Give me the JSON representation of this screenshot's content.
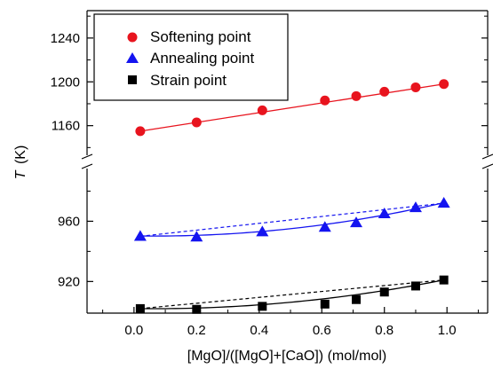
{
  "chart_data": {
    "type": "scatter",
    "xlabel": "[MgO]/([MgO]+[CaO]) (mol/mol)",
    "ylabel_var": "T",
    "ylabel_unit": "(K)",
    "xlim": [
      -0.15,
      1.13
    ],
    "x_ticks": [
      "0.0",
      "0.2",
      "0.4",
      "0.6",
      "0.8",
      "1.0"
    ],
    "x_tick_values": [
      0.0,
      0.2,
      0.4,
      0.6,
      0.8,
      1.0
    ],
    "y_axis_broken": true,
    "upper_panel": {
      "ylim": [
        1133,
        1265
      ],
      "ticks": [
        1160,
        1200,
        1240
      ]
    },
    "lower_panel": {
      "ylim": [
        899,
        995
      ],
      "ticks": [
        920,
        960
      ]
    },
    "legend_position": "top-left",
    "series": [
      {
        "name": "Softening point",
        "marker": "circle",
        "color": "#e8141e",
        "panel": "upper",
        "x": [
          0.02,
          0.2,
          0.41,
          0.61,
          0.71,
          0.8,
          0.9,
          0.99
        ],
        "y": [
          1155,
          1163,
          1174,
          1183,
          1187,
          1191,
          1195,
          1198
        ],
        "fit": {
          "kind": "linear",
          "style": "solid",
          "from": [
            0.02,
            1155
          ],
          "to": [
            0.99,
            1198
          ]
        }
      },
      {
        "name": "Annealing point",
        "marker": "triangle",
        "color": "#1414f0",
        "panel": "lower",
        "x": [
          0.02,
          0.2,
          0.41,
          0.61,
          0.71,
          0.8,
          0.9,
          0.99
        ],
        "y": [
          950,
          949.5,
          953,
          956,
          959,
          965,
          969,
          972
        ],
        "fit": {
          "kind": "quadratic",
          "style": "solid",
          "a": 950.3,
          "b": -3.5,
          "c": 26.0
        },
        "ideal": {
          "style": "dashed",
          "from": [
            0.02,
            950
          ],
          "to": [
            0.99,
            972
          ]
        }
      },
      {
        "name": "Strain point",
        "marker": "square",
        "color": "#000000",
        "panel": "lower",
        "x": [
          0.02,
          0.2,
          0.41,
          0.61,
          0.71,
          0.8,
          0.9,
          0.99
        ],
        "y": [
          902,
          901.5,
          903.5,
          905,
          908,
          913,
          917,
          921
        ],
        "fit": {
          "kind": "quadratic",
          "style": "solid",
          "a": 902.0,
          "b": -2.6,
          "c": 22.0
        },
        "ideal": {
          "style": "dashed",
          "from": [
            0.02,
            902
          ],
          "to": [
            0.99,
            921
          ]
        }
      }
    ]
  }
}
